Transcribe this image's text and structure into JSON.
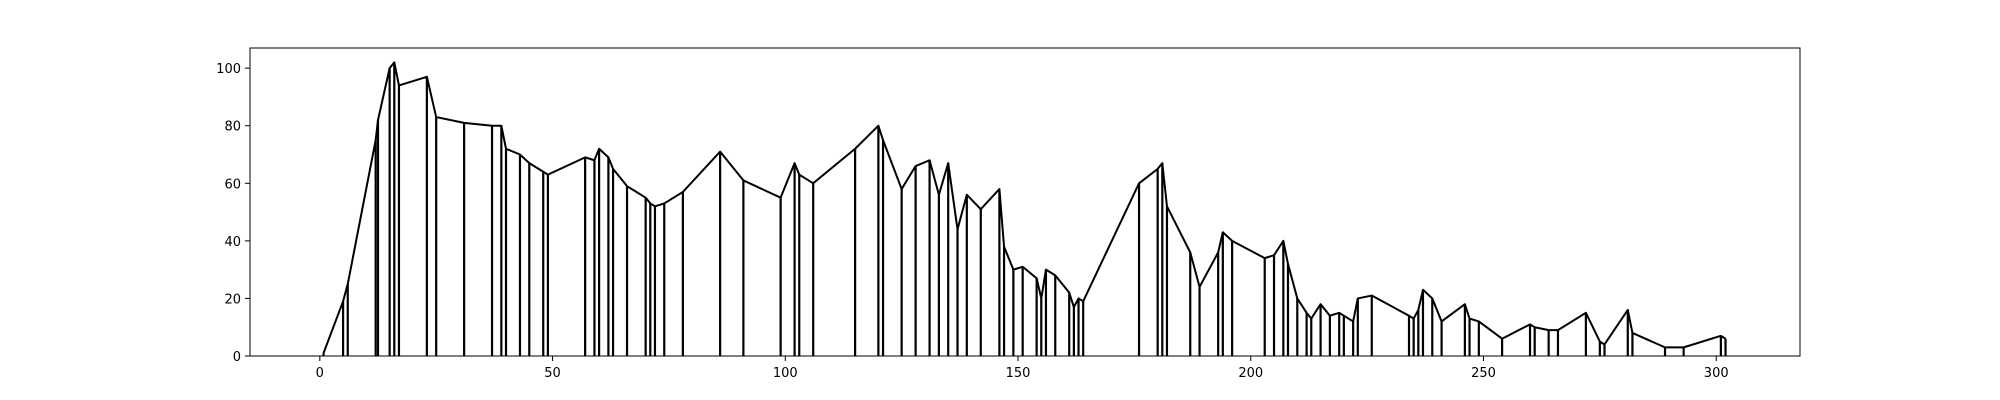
{
  "chart_data": {
    "type": "line",
    "title": "",
    "xlabel": "",
    "ylabel": "",
    "xlim": [
      -15,
      318
    ],
    "ylim": [
      0,
      107
    ],
    "x_ticks": [
      0,
      50,
      100,
      150,
      200,
      250,
      300
    ],
    "y_ticks": [
      0,
      20,
      40,
      60,
      80,
      100
    ],
    "grid": false,
    "legend": "none",
    "line_color": "#000000",
    "series": [
      {
        "x": [
          0.8,
          5,
          6,
          12,
          12.5,
          15,
          16,
          17,
          23,
          25,
          31,
          37,
          39,
          40,
          43,
          45,
          48,
          49,
          57,
          59,
          60,
          62,
          63,
          66,
          70,
          71,
          72,
          74,
          78,
          86,
          91,
          99,
          102,
          103,
          106,
          115,
          120,
          121,
          125,
          128,
          131,
          133,
          135,
          137,
          139,
          142,
          146,
          147,
          149,
          151,
          154,
          155,
          156,
          158,
          161,
          162,
          163,
          164,
          176,
          180,
          181,
          182,
          187,
          189,
          193,
          194,
          196,
          203,
          205,
          207,
          208,
          210,
          212,
          213,
          215,
          217,
          219,
          220,
          222,
          223,
          226,
          234,
          235,
          236,
          237,
          239,
          241,
          246,
          247,
          249,
          254,
          260,
          261,
          264,
          266,
          272,
          275,
          276,
          281,
          282,
          289,
          293,
          301,
          302
        ],
        "y": [
          1,
          19,
          25,
          75,
          82,
          100,
          102,
          94,
          97,
          83,
          81,
          80,
          80,
          72,
          70,
          67,
          64,
          63,
          69,
          68,
          72,
          69,
          65,
          59,
          55,
          53,
          52,
          53,
          57,
          71,
          61,
          55,
          67,
          63,
          60,
          72,
          80,
          75,
          58,
          66,
          68,
          56,
          67,
          44,
          56,
          51,
          58,
          38,
          30,
          31,
          27,
          20,
          30,
          28,
          22,
          17,
          20,
          19,
          60,
          65,
          67,
          52,
          36,
          24,
          36,
          43,
          40,
          34,
          35,
          40,
          32,
          20,
          15,
          13,
          18,
          14,
          15,
          14,
          12,
          20,
          21,
          14,
          13,
          16,
          23,
          20,
          12,
          18,
          13,
          12,
          6,
          11,
          10,
          9,
          9,
          15,
          5,
          4,
          16,
          8,
          3,
          3,
          7,
          6
        ]
      }
    ]
  }
}
